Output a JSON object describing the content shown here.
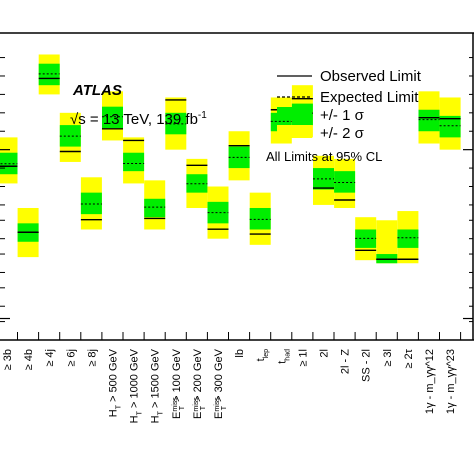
{
  "chart_data": {
    "type": "bar",
    "title": "",
    "experiment": "ATLAS",
    "energy_label": "√s = 13 TeV, 139 fb",
    "lumi_exponent": "-1",
    "xlabel": "",
    "ylabel": "",
    "ylim": [
      0,
      1
    ],
    "y_scale": "log",
    "grid": false,
    "legend_position": "top-right",
    "note": "All Limits at 95% CL",
    "legend": [
      {
        "key": "observed",
        "label": "Observed Limit",
        "style": "solid-line"
      },
      {
        "key": "expected",
        "label": "Expected Limit",
        "style": "dashed-line"
      },
      {
        "key": "band1",
        "label": "+/- 1 σ",
        "color": "#00ee00"
      },
      {
        "key": "band2",
        "label": "+/- 2 σ",
        "color": "#ffff00"
      }
    ],
    "categories": [
      {
        "label": "≥ 3b",
        "observed": 0.566,
        "expected": 0.574,
        "band1": [
          0.54,
          0.61
        ],
        "band2": [
          0.51,
          0.66
        ]
      },
      {
        "label": "≥ 4b",
        "observed": 0.351,
        "expected": 0.35,
        "band1": [
          0.32,
          0.38
        ],
        "band2": [
          0.27,
          0.43
        ]
      },
      {
        "label": "≥ 4j",
        "observed": 0.852,
        "expected": 0.867,
        "band1": [
          0.83,
          0.9
        ],
        "band2": [
          0.8,
          0.93
        ]
      },
      {
        "label": "≥ 6j",
        "observed": 0.614,
        "expected": 0.664,
        "band1": [
          0.63,
          0.7
        ],
        "band2": [
          0.58,
          0.74
        ]
      },
      {
        "label": "≥ 8j",
        "observed": 0.392,
        "expected": 0.443,
        "band1": [
          0.41,
          0.48
        ],
        "band2": [
          0.36,
          0.53
        ]
      },
      {
        "label": "H_T > 500 GeV",
        "observed": 0.688,
        "expected": 0.727,
        "band1": [
          0.69,
          0.76
        ],
        "band2": [
          0.65,
          0.81
        ]
      },
      {
        "label": "H_T > 1000 GeV",
        "observed": 0.65,
        "expected": 0.575,
        "band1": [
          0.55,
          0.61
        ],
        "band2": [
          0.51,
          0.66
        ]
      },
      {
        "label": "H_T > 1500 GeV",
        "observed": 0.396,
        "expected": 0.433,
        "band1": [
          0.4,
          0.46
        ],
        "band2": [
          0.36,
          0.52
        ]
      },
      {
        "label": "E_T^miss > 100 GeV",
        "observed": 0.782,
        "expected": 0.704,
        "band1": [
          0.67,
          0.74
        ],
        "band2": [
          0.62,
          0.79
        ]
      },
      {
        "label": "E_T^miss > 200 GeV",
        "observed": 0.569,
        "expected": 0.509,
        "band1": [
          0.48,
          0.54
        ],
        "band2": [
          0.43,
          0.59
        ]
      },
      {
        "label": "E_T^miss > 300 GeV",
        "observed": 0.361,
        "expected": 0.415,
        "band1": [
          0.38,
          0.45
        ],
        "band2": [
          0.33,
          0.5
        ]
      },
      {
        "label": "lb",
        "observed": 0.633,
        "expected": 0.595,
        "band1": [
          0.56,
          0.63
        ],
        "band2": [
          0.52,
          0.68
        ]
      },
      {
        "label": "t_lep",
        "observed": 0.345,
        "expected": 0.393,
        "band1": [
          0.36,
          0.43
        ],
        "band2": [
          0.31,
          0.48
        ]
      },
      {
        "label": "t_had",
        "observed": 0.75,
        "expected": 0.712,
        "band1": [
          0.68,
          0.74
        ],
        "band2": [
          0.64,
          0.79
        ]
      },
      {
        "label": "≥ 1l",
        "observed": 0.786,
        "expected": 0.739,
        "band1": [
          0.7,
          0.77
        ],
        "band2": [
          0.66,
          0.83
        ]
      },
      {
        "label": "2l",
        "observed": 0.495,
        "expected": 0.525,
        "band1": [
          0.49,
          0.56
        ],
        "band2": [
          0.44,
          0.6
        ]
      },
      {
        "label": "2l - Z",
        "observed": 0.456,
        "expected": 0.513,
        "band1": [
          0.48,
          0.55
        ],
        "band2": [
          0.43,
          0.59
        ]
      },
      {
        "label": "SS - 2l",
        "observed": 0.292,
        "expected": 0.331,
        "band1": [
          0.3,
          0.36
        ],
        "band2": [
          0.26,
          0.4
        ]
      },
      {
        "label": "≥ 3l",
        "observed": 0.263,
        "expected": 0.263,
        "band1": [
          0.25,
          0.28
        ],
        "band2": [
          0.25,
          0.39
        ]
      },
      {
        "label": "≥ 2τ",
        "observed": 0.263,
        "expected": 0.333,
        "band1": [
          0.3,
          0.36
        ],
        "band2": [
          0.25,
          0.42
        ]
      },
      {
        "label": "1γ - m_γγ^12",
        "observed": 0.724,
        "expected": 0.718,
        "band1": [
          0.68,
          0.75
        ],
        "band2": [
          0.64,
          0.81
        ]
      },
      {
        "label": "1γ - m_γγ^23",
        "observed": 0.721,
        "expected": 0.698,
        "band1": [
          0.66,
          0.73
        ],
        "band2": [
          0.62,
          0.79
        ]
      }
    ]
  }
}
